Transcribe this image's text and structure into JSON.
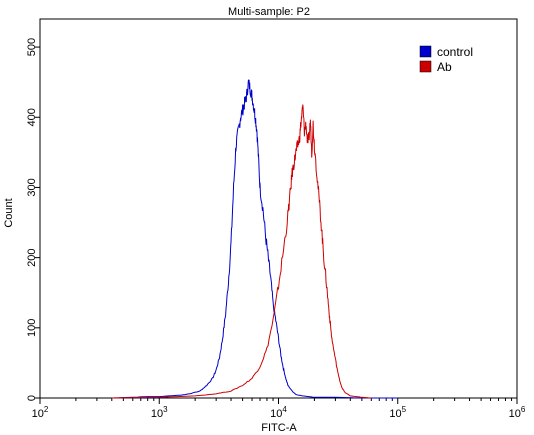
{
  "chart_data": {
    "type": "line",
    "title": "Multi-sample: P2",
    "xlabel": "FITC-A",
    "ylabel": "Count",
    "x_scale": "log",
    "xlim": [
      100,
      1000000
    ],
    "ylim": [
      0,
      540
    ],
    "x_ticks": [
      {
        "value": 100,
        "base": "10",
        "exp": "2"
      },
      {
        "value": 1000,
        "base": "10",
        "exp": "3"
      },
      {
        "value": 10000,
        "base": "10",
        "exp": "4"
      },
      {
        "value": 100000,
        "base": "10",
        "exp": "5"
      },
      {
        "value": 1000000,
        "base": "10",
        "exp": "6"
      }
    ],
    "y_ticks": [
      0,
      100,
      200,
      300,
      400,
      500
    ],
    "grid": false,
    "legend_position": "top-right",
    "series": [
      {
        "name": "control",
        "color": "#0000cc",
        "x": [
          400,
          600,
          800,
          1000,
          1200,
          1500,
          1800,
          2200,
          2500,
          2800,
          3000,
          3200,
          3400,
          3600,
          3800,
          4000,
          4200,
          4400,
          4600,
          4800,
          5000,
          5200,
          5400,
          5600,
          5800,
          6000,
          6200,
          6400,
          6600,
          6800,
          7000,
          7400,
          7800,
          8200,
          8600,
          9000,
          9500,
          10000,
          10500,
          11000,
          11500,
          12000,
          13000,
          14000,
          16000,
          20000,
          30000,
          50000,
          100000
        ],
        "y": [
          0,
          1,
          2,
          2,
          3,
          4,
          6,
          10,
          18,
          28,
          40,
          58,
          85,
          120,
          165,
          220,
          300,
          360,
          380,
          400,
          410,
          420,
          430,
          450,
          440,
          430,
          415,
          400,
          380,
          340,
          300,
          270,
          230,
          200,
          170,
          135,
          110,
          85,
          60,
          42,
          28,
          18,
          10,
          5,
          3,
          1,
          1,
          0,
          0
        ]
      },
      {
        "name": "Ab",
        "color": "#cc0000",
        "x": [
          400,
          1000,
          2000,
          3000,
          4000,
          5000,
          6000,
          7000,
          8000,
          9000,
          10000,
          11000,
          12000,
          12500,
          13000,
          13500,
          14000,
          14500,
          15000,
          15500,
          16000,
          16500,
          17000,
          17500,
          18000,
          18500,
          19000,
          19500,
          20000,
          21000,
          22000,
          23000,
          24000,
          25000,
          26000,
          27000,
          28000,
          30000,
          32000,
          34000,
          36000,
          40000,
          45000,
          50000,
          60000
        ],
        "y": [
          0,
          1,
          3,
          6,
          10,
          18,
          28,
          45,
          70,
          110,
          160,
          210,
          260,
          290,
          320,
          335,
          350,
          360,
          370,
          395,
          415,
          380,
          390,
          365,
          370,
          395,
          350,
          390,
          360,
          320,
          280,
          240,
          200,
          170,
          140,
          110,
          85,
          55,
          30,
          15,
          8,
          3,
          2,
          1,
          0
        ]
      }
    ]
  }
}
